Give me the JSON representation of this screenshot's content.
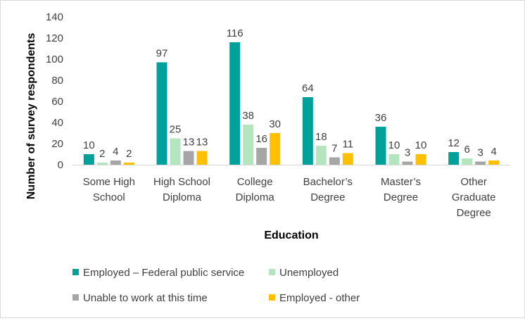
{
  "chart_data": {
    "type": "bar",
    "title": "",
    "xlabel": "Education",
    "ylabel": "Number of survey respondents",
    "ylim": [
      0,
      140
    ],
    "yticks": [
      0,
      20,
      40,
      60,
      80,
      100,
      120,
      140
    ],
    "grid": false,
    "legend_position": "bottom",
    "categories": [
      [
        "Some High",
        "School"
      ],
      [
        "High School",
        "Diploma"
      ],
      [
        "College",
        "Diploma"
      ],
      [
        "Bachelor’s",
        "Degree"
      ],
      [
        "Master’s",
        "Degree"
      ],
      [
        "Other",
        "Graduate",
        "Degree"
      ]
    ],
    "series": [
      {
        "name": "Employed – Federal public service",
        "color": "#00a19a",
        "values": [
          10,
          97,
          116,
          64,
          36,
          12
        ]
      },
      {
        "name": "Unemployed",
        "color": "#b3e6be",
        "values": [
          2,
          25,
          38,
          18,
          10,
          6
        ]
      },
      {
        "name": "Unable to work at this time",
        "color": "#a6a6a6",
        "values": [
          4,
          13,
          16,
          7,
          3,
          3
        ]
      },
      {
        "name": "Employed - other",
        "color": "#ffc000",
        "values": [
          2,
          13,
          30,
          11,
          10,
          4
        ]
      }
    ]
  }
}
